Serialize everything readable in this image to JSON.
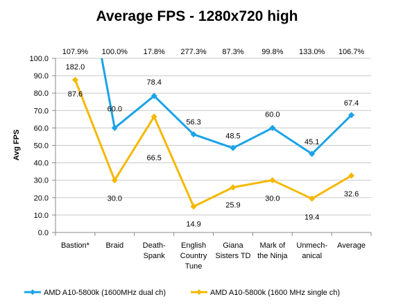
{
  "chart_data": {
    "type": "line",
    "title": "Average FPS - 1280x720 high",
    "ylabel": "Avg FPS",
    "xlabel": "",
    "ylim": [
      0,
      100
    ],
    "yticks": [
      "0.0",
      "10.0",
      "20.0",
      "30.0",
      "40.0",
      "50.0",
      "60.0",
      "70.0",
      "80.0",
      "90.0",
      "100.0"
    ],
    "ytick_values": [
      0,
      10,
      20,
      30,
      40,
      50,
      60,
      70,
      80,
      90,
      100
    ],
    "grid": true,
    "legend_position": "bottom",
    "categories": [
      [
        "Bastion*"
      ],
      [
        "Braid"
      ],
      [
        "Death-",
        "Spank"
      ],
      [
        "English",
        "Country",
        "Tune"
      ],
      [
        "Giana",
        "Sisters TD"
      ],
      [
        "Mark of",
        "the Ninja"
      ],
      [
        "Unmech-",
        "anical"
      ],
      [
        "Average"
      ]
    ],
    "percent_labels": [
      "107.9%",
      "100.0%",
      "17.8%",
      "277.3%",
      "87.3%",
      "99.8%",
      "133.0%",
      "106.7%"
    ],
    "series": [
      {
        "name": "AMD A10-5800k (1600MHz dual ch)",
        "color": "#1aa3e8",
        "values": [
          182.0,
          60.0,
          78.4,
          56.3,
          48.5,
          60.0,
          45.1,
          67.4
        ],
        "labels": [
          "182.0",
          "60.0",
          "78.4",
          "56.3",
          "48.5",
          "60.0",
          "45.1",
          "67.4"
        ]
      },
      {
        "name": "AMD A10-5800k (1600 MHz single ch)",
        "color": "#f5b800",
        "values": [
          87.6,
          30.0,
          66.5,
          14.9,
          25.9,
          30.0,
          19.4,
          32.6
        ],
        "labels": [
          "87.6",
          "30.0",
          "66.5",
          "14.9",
          "25.9",
          "30.0",
          "19.4",
          "32.6"
        ]
      }
    ]
  }
}
